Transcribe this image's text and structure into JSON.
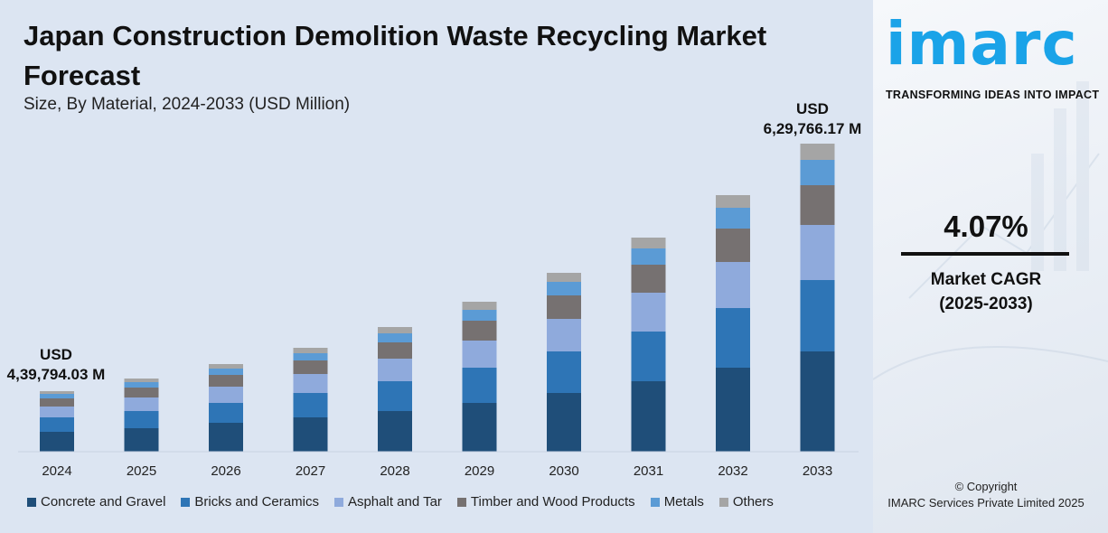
{
  "header": {
    "title": "Japan Construction Demolition Waste Recycling Market Forecast",
    "subtitle": "Size, By Material, 2024-2033 (USD Million)"
  },
  "annotations": {
    "start_currency": "USD",
    "start_value": "4,39,794.03 M",
    "end_currency": "USD",
    "end_value": "6,29,766.17 M"
  },
  "brand": {
    "logo_text": "imarc",
    "tagline": "TRANSFORMING IDEAS INTO IMPACT",
    "logo_color": "#1aa3e8"
  },
  "cagr": {
    "value": "4.07%",
    "label_line1": "Market CAGR",
    "label_line2": "(2025-2033)"
  },
  "footer": {
    "copyright_line1": "© Copyright",
    "copyright_line2": "IMARC Services Private Limited 2025"
  },
  "chart_data": {
    "type": "bar",
    "stacked": true,
    "categories": [
      "2024",
      "2025",
      "2026",
      "2027",
      "2028",
      "2029",
      "2030",
      "2031",
      "2032",
      "2033"
    ],
    "series": [
      {
        "name": "Concrete and Gravel",
        "color": "#1f4e79",
        "values": [
          22,
          26,
          32,
          38,
          45,
          54,
          65,
          78,
          93,
          111
        ]
      },
      {
        "name": "Bricks and Ceramics",
        "color": "#2e75b6",
        "values": [
          16,
          19,
          22,
          27,
          33,
          39,
          46,
          55,
          66,
          79
        ]
      },
      {
        "name": "Asphalt and Tar",
        "color": "#8faadc",
        "values": [
          12,
          15,
          18,
          21,
          25,
          30,
          36,
          43,
          51,
          61
        ]
      },
      {
        "name": "Timber and Wood Products",
        "color": "#767171",
        "values": [
          9,
          11,
          13,
          15,
          18,
          22,
          26,
          31,
          37,
          44
        ]
      },
      {
        "name": "Metals",
        "color": "#5b9bd5",
        "values": [
          5,
          6,
          7,
          8,
          10,
          12,
          15,
          18,
          23,
          28
        ]
      },
      {
        "name": "Others",
        "color": "#a5a5a5",
        "values": [
          3,
          4,
          5,
          6,
          7,
          9,
          10,
          12,
          14,
          18
        ]
      }
    ],
    "legend_position": "bottom",
    "grid": false,
    "ylim": [
      0,
      350
    ]
  }
}
